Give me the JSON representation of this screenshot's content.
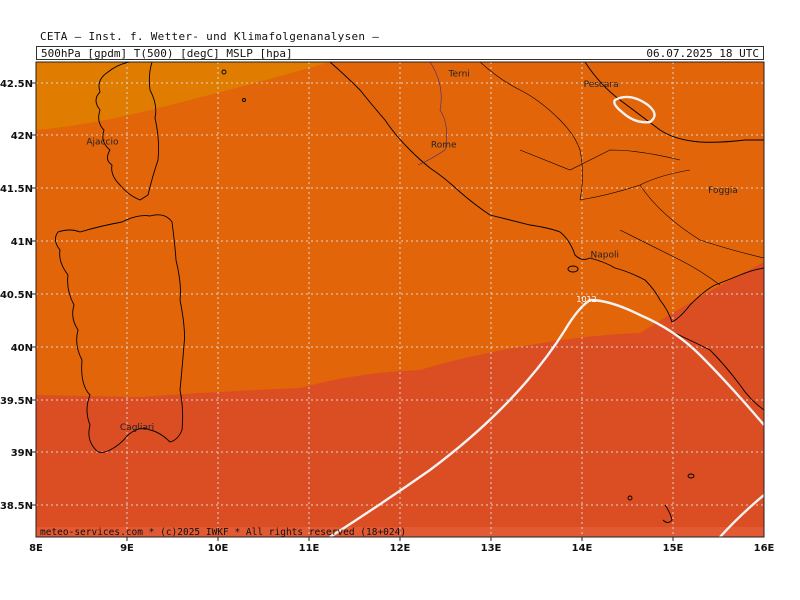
{
  "header": {
    "title": "CETA — Inst. f. Wetter- und Klimafolgenanalysen —",
    "product": "500hPa_[gpdm]_T(500)_[degC]_MSLP_[hpa]",
    "valid_time": "06.07.2025 18 UTC"
  },
  "axes": {
    "lon_ticks": [
      "8E",
      "9E",
      "10E",
      "11E",
      "12E",
      "13E",
      "14E",
      "15E",
      "16E"
    ],
    "lat_ticks": [
      "42.5N",
      "42N",
      "41.5N",
      "41N",
      "40.5N",
      "40N",
      "39.5N",
      "39N",
      "38.5N"
    ]
  },
  "cities": [
    {
      "name": "Terni",
      "lon": 12.65,
      "lat": 42.56
    },
    {
      "name": "Pescara",
      "lon": 14.21,
      "lat": 42.46
    },
    {
      "name": "Ajaccio",
      "lon": 8.73,
      "lat": 41.92
    },
    {
      "name": "Rome",
      "lon": 12.48,
      "lat": 41.89
    },
    {
      "name": "Foggia",
      "lon": 15.55,
      "lat": 41.46
    },
    {
      "name": "Napoli",
      "lon": 14.25,
      "lat": 40.85
    },
    {
      "name": "Cagliari",
      "lon": 9.11,
      "lat": 39.22
    }
  ],
  "isobars": [
    {
      "label": "1012",
      "label_lon": 14.05,
      "label_lat": 40.43
    }
  ],
  "colors": {
    "temp_band_warmest": "#e07d00",
    "temp_band_mid": "#e3650a",
    "temp_band_cold": "#db4d22",
    "temp_band_strip": "#e25a34",
    "coast": "#000000",
    "isobar": "#f2f2f2",
    "grid": "#d8d8d8"
  },
  "credit": "meteo-services.com * (c)2025 IWKF * All rights reserved (18+024)"
}
